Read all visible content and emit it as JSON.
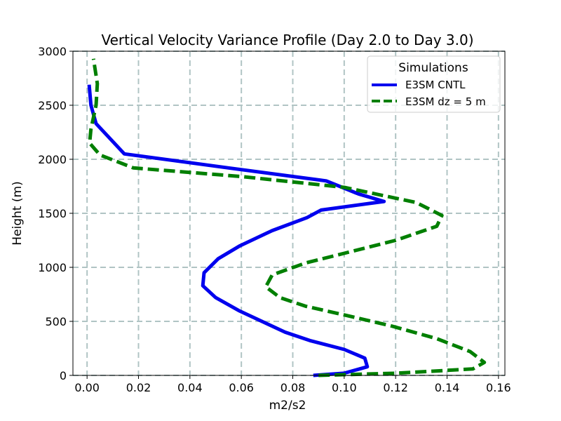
{
  "chart_data": {
    "type": "line",
    "title": "Vertical Velocity Variance Profile (Day 2.0 to Day 3.0)",
    "xlabel": "m2/s2",
    "ylabel": "Height (m)",
    "xlim": [
      -0.0055,
      0.1625
    ],
    "ylim": [
      0,
      3000
    ],
    "xticks": [
      0.0,
      0.02,
      0.04,
      0.06,
      0.08,
      0.1,
      0.12,
      0.14,
      0.16
    ],
    "xtick_labels": [
      "0.00",
      "0.02",
      "0.04",
      "0.06",
      "0.08",
      "0.10",
      "0.12",
      "0.14",
      "0.16"
    ],
    "yticks": [
      0,
      500,
      1000,
      1500,
      2000,
      2500,
      3000
    ],
    "ytick_labels": [
      "0",
      "500",
      "1000",
      "1500",
      "2000",
      "2500",
      "3000"
    ],
    "grid": true,
    "legend": {
      "title": "Simulations",
      "position": "top-right"
    },
    "series": [
      {
        "name": "E3SM CNTL",
        "color": "#0000ee",
        "style": "solid",
        "points": [
          [
            0.088,
            0
          ],
          [
            0.1,
            20
          ],
          [
            0.109,
            80
          ],
          [
            0.108,
            160
          ],
          [
            0.1,
            240
          ],
          [
            0.087,
            320
          ],
          [
            0.077,
            400
          ],
          [
            0.068,
            500
          ],
          [
            0.059,
            600
          ],
          [
            0.05,
            720
          ],
          [
            0.045,
            830
          ],
          [
            0.0455,
            950
          ],
          [
            0.051,
            1080
          ],
          [
            0.0595,
            1200
          ],
          [
            0.072,
            1340
          ],
          [
            0.0855,
            1460
          ],
          [
            0.091,
            1530
          ],
          [
            0.1155,
            1610
          ],
          [
            0.1055,
            1680
          ],
          [
            0.093,
            1800
          ],
          [
            0.055,
            1920
          ],
          [
            0.0145,
            2050
          ],
          [
            0.0035,
            2330
          ],
          [
            0.0015,
            2500
          ],
          [
            0.0008,
            2690
          ]
        ]
      },
      {
        "name": "E3SM dz = 5 m",
        "color": "#007f00",
        "style": "dashed",
        "points": [
          [
            0.09,
            0
          ],
          [
            0.12,
            20
          ],
          [
            0.15,
            60
          ],
          [
            0.1545,
            120
          ],
          [
            0.149,
            220
          ],
          [
            0.136,
            340
          ],
          [
            0.118,
            460
          ],
          [
            0.1,
            560
          ],
          [
            0.085,
            640
          ],
          [
            0.075,
            720
          ],
          [
            0.0695,
            820
          ],
          [
            0.072,
            930
          ],
          [
            0.085,
            1040
          ],
          [
            0.1,
            1130
          ],
          [
            0.12,
            1250
          ],
          [
            0.136,
            1380
          ],
          [
            0.138,
            1480
          ],
          [
            0.128,
            1600
          ],
          [
            0.1,
            1740
          ],
          [
            0.06,
            1840
          ],
          [
            0.018,
            1920
          ],
          [
            0.005,
            2040
          ],
          [
            0.001,
            2150
          ],
          [
            0.0015,
            2280
          ],
          [
            0.0035,
            2500
          ],
          [
            0.004,
            2700
          ],
          [
            0.0025,
            2930
          ]
        ]
      }
    ]
  }
}
